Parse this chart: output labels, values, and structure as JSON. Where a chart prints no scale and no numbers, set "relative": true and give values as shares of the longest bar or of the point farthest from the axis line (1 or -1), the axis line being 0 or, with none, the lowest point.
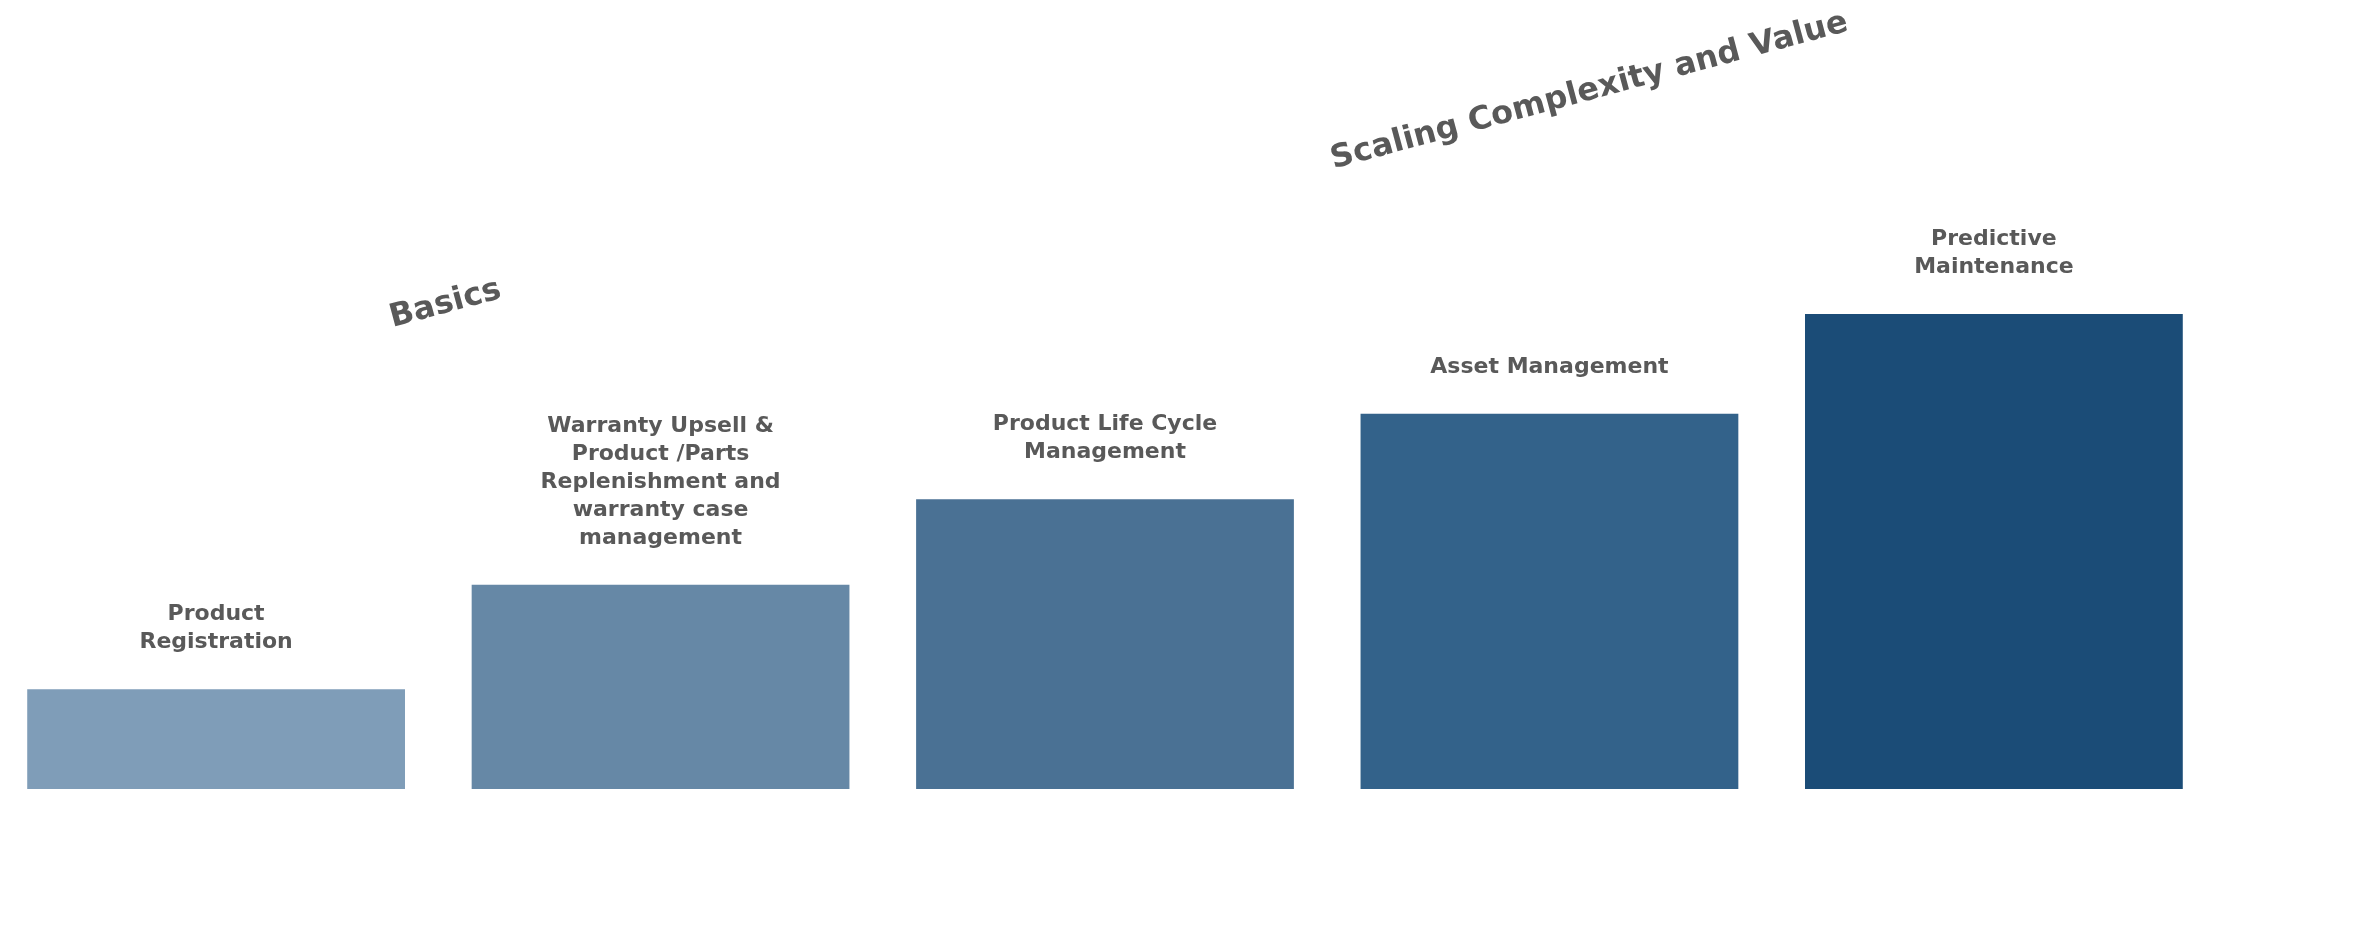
{
  "chart_data": {
    "type": "bar",
    "relative": true,
    "categories": [
      "Product Registration",
      "Warranty Upsell & Product /Parts Replenishment and warranty case management",
      "Product Life Cycle Management",
      "Asset Management",
      "Predictive Maintenance"
    ],
    "values": [
      0.21,
      0.43,
      0.61,
      0.79,
      1.0
    ],
    "colors": [
      "#7f9db8",
      "#6688a6",
      "#4a7194",
      "#33628a",
      "#1b4c77"
    ],
    "annotations": [
      "Basics",
      "Scaling Complexity and Value"
    ],
    "stacked": false
  }
}
